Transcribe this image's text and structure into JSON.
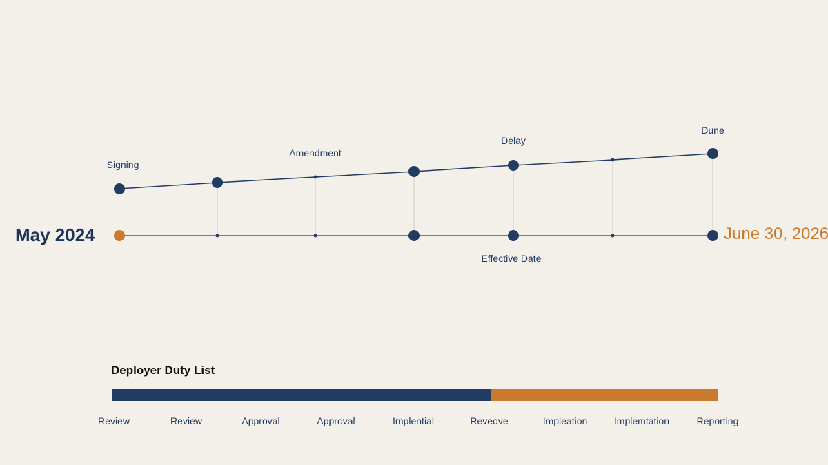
{
  "timeline": {
    "start_label": "May 2024",
    "end_label": "June 30, 2026",
    "events": [
      {
        "label": "Signing",
        "upper": "large"
      },
      {
        "label": "",
        "upper": "large",
        "lower": "small"
      },
      {
        "label": "Amendment",
        "upper": "small",
        "lower": "small"
      },
      {
        "label": "",
        "upper": "large",
        "lower": "large"
      },
      {
        "label": "Delay",
        "upper": "large",
        "lower": "large"
      },
      {
        "label": "",
        "upper": "small",
        "lower": "small"
      },
      {
        "label": "Dune",
        "upper": "large",
        "lower": "large"
      }
    ],
    "effective_label": "Effective Date",
    "colors": {
      "navy": "#213b63",
      "orange": "#c97a2c"
    }
  },
  "duty_list": {
    "title": "Deployer Duty List",
    "progress_fraction": 0.625,
    "items": [
      "Review",
      "Review",
      "Approval",
      "Approval",
      "Implential",
      "Reveove",
      "Impleation",
      "Implemtation",
      "Reporting"
    ]
  }
}
